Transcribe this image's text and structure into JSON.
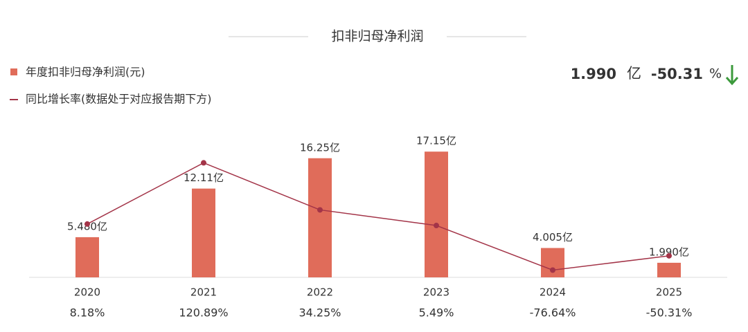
{
  "chart_data": {
    "type": "bar",
    "title": "扣非归母净利润",
    "summary": {
      "value": {
        "value": 1.99,
        "label": "1.990"
      },
      "unit": "亿",
      "change": {
        "value": -50.31,
        "label": "-50.31"
      },
      "change_unit": "%"
    },
    "categories": [
      "2020",
      "2021",
      "2022",
      "2023",
      "2024",
      "2025"
    ],
    "series": [
      {
        "name": "年度扣非归母净利润(元)",
        "type": "bar",
        "color": "#e06c5a",
        "values": [
          5.48,
          12.11,
          16.25,
          17.15,
          4.005,
          1.99
        ],
        "value_labels": [
          "5.480亿",
          "12.11亿",
          "16.25亿",
          "17.15亿",
          "4.005亿",
          "1.990亿"
        ]
      },
      {
        "name": "同比增长率(数据处于对应报告期下方)",
        "type": "line",
        "axis": "y2",
        "color": "#a33448",
        "values": [
          8.18,
          120.89,
          34.25,
          5.49,
          -76.64,
          -50.31
        ],
        "value_labels": [
          "8.18%",
          "120.89%",
          "34.25%",
          "5.49%",
          "-76.64%",
          "-50.31%"
        ]
      }
    ],
    "ylim": [
      0,
      20
    ],
    "y2lim": [
      -90,
      180
    ],
    "positive_color": "#d0392b",
    "negative_color": "#3c9a3c"
  }
}
